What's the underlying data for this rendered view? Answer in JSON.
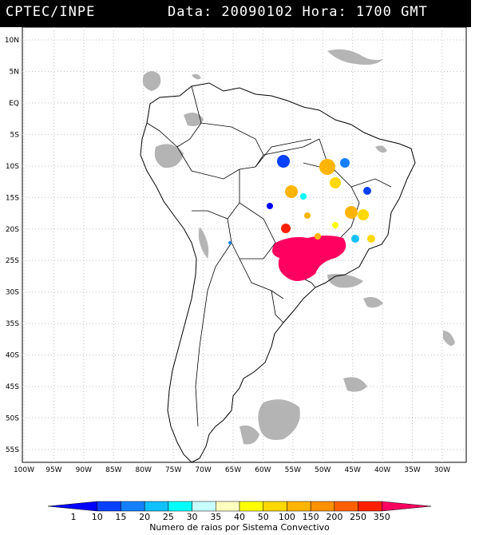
{
  "header": {
    "left": "CPTEC/INPE",
    "right": "Data: 20090102 Hora: 1700 GMT"
  },
  "axes": {
    "lat_labels": [
      "10N",
      "5N",
      "EQ",
      "5S",
      "10S",
      "15S",
      "20S",
      "25S",
      "30S",
      "35S",
      "40S",
      "45S",
      "50S",
      "55S"
    ],
    "lon_labels": [
      "100W",
      "95W",
      "90W",
      "85W",
      "80W",
      "75W",
      "70W",
      "65W",
      "60W",
      "55W",
      "50W",
      "45W",
      "40W",
      "35W",
      "30W"
    ]
  },
  "legend": {
    "values": [
      "1",
      "10",
      "15",
      "20",
      "25",
      "30",
      "35",
      "40",
      "50",
      "100",
      "150",
      "200",
      "250",
      "350"
    ],
    "colors": [
      "#0000ff",
      "#0a40ff",
      "#1480ff",
      "#10c0ff",
      "#00ffff",
      "#c8ffff",
      "#ffffc0",
      "#ffff00",
      "#ffd800",
      "#ffb400",
      "#ff9000",
      "#ff6000",
      "#ff2000",
      "#ff0060"
    ],
    "title": "Numero de raios por Sistema Convectivo"
  }
}
